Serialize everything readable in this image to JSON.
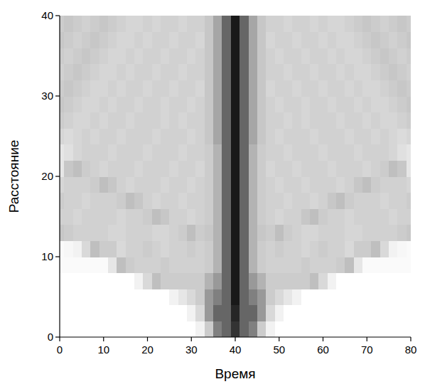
{
  "chart_data": {
    "type": "heatmap",
    "x_label": "Время",
    "y_label": "Расстояние",
    "xlim": [
      0,
      80
    ],
    "ylim": [
      0,
      40
    ],
    "xticks": [
      0,
      10,
      20,
      30,
      40,
      50,
      60,
      70,
      80
    ],
    "yticks": [
      0,
      10,
      20,
      30,
      40
    ],
    "x": [
      0,
      2,
      4,
      6,
      8,
      10,
      12,
      14,
      16,
      18,
      20,
      22,
      24,
      26,
      28,
      30,
      32,
      34,
      36,
      38,
      40,
      42,
      44,
      46,
      48,
      50,
      52,
      54,
      56,
      58,
      60,
      62,
      64,
      66,
      68,
      70,
      72,
      74,
      76,
      78,
      80
    ],
    "y": [
      1,
      3,
      5,
      7,
      9,
      11,
      13,
      15,
      17,
      19,
      21,
      23,
      25,
      27,
      29,
      31,
      33,
      35,
      37,
      39
    ],
    "values": [
      [
        0,
        0,
        0,
        0,
        0,
        0,
        0,
        0,
        0,
        0,
        0,
        0,
        0,
        0,
        0,
        0,
        0.05,
        0.2,
        0.5,
        0.6,
        0.8,
        0.6,
        0.5,
        0.2,
        0.05,
        0,
        0,
        0,
        0,
        0,
        0,
        0,
        0,
        0,
        0,
        0,
        0,
        0,
        0,
        0,
        0
      ],
      [
        0,
        0,
        0,
        0,
        0,
        0,
        0,
        0,
        0,
        0,
        0,
        0,
        0,
        0,
        0,
        0.05,
        0.15,
        0.4,
        0.6,
        0.6,
        0.85,
        0.6,
        0.6,
        0.4,
        0.15,
        0.05,
        0,
        0,
        0,
        0,
        0,
        0,
        0,
        0,
        0,
        0,
        0,
        0,
        0,
        0,
        0
      ],
      [
        0,
        0,
        0,
        0,
        0,
        0,
        0,
        0,
        0,
        0,
        0,
        0,
        0,
        0.05,
        0.1,
        0.15,
        0.2,
        0.4,
        0.5,
        0.6,
        0.9,
        0.6,
        0.5,
        0.4,
        0.2,
        0.15,
        0.1,
        0.05,
        0,
        0,
        0,
        0,
        0,
        0,
        0,
        0,
        0,
        0,
        0,
        0,
        0
      ],
      [
        0,
        0,
        0,
        0,
        0,
        0,
        0,
        0,
        0,
        0.05,
        0.15,
        0.25,
        0.2,
        0.2,
        0.2,
        0.2,
        0.2,
        0.3,
        0.4,
        0.6,
        0.9,
        0.6,
        0.4,
        0.3,
        0.2,
        0.2,
        0.2,
        0.2,
        0.2,
        0.25,
        0.15,
        0.05,
        0,
        0,
        0,
        0,
        0,
        0,
        0,
        0,
        0
      ],
      [
        0.02,
        0.02,
        0.02,
        0.02,
        0.02,
        0.02,
        0.1,
        0.25,
        0.2,
        0.18,
        0.18,
        0.18,
        0.2,
        0.18,
        0.18,
        0.18,
        0.18,
        0.2,
        0.3,
        0.6,
        0.9,
        0.6,
        0.3,
        0.2,
        0.18,
        0.18,
        0.18,
        0.18,
        0.2,
        0.18,
        0.18,
        0.18,
        0.2,
        0.25,
        0.1,
        0.02,
        0.02,
        0.02,
        0.02,
        0.02,
        0.02
      ],
      [
        0.02,
        0.03,
        0.05,
        0.15,
        0.25,
        0.2,
        0.2,
        0.15,
        0.18,
        0.18,
        0.2,
        0.18,
        0.16,
        0.18,
        0.18,
        0.2,
        0.18,
        0.2,
        0.3,
        0.6,
        0.9,
        0.6,
        0.3,
        0.2,
        0.18,
        0.2,
        0.18,
        0.18,
        0.16,
        0.18,
        0.2,
        0.18,
        0.18,
        0.15,
        0.2,
        0.2,
        0.25,
        0.15,
        0.05,
        0.03,
        0.02
      ],
      [
        0.22,
        0.2,
        0.18,
        0.18,
        0.18,
        0.18,
        0.16,
        0.16,
        0.18,
        0.18,
        0.18,
        0.16,
        0.16,
        0.18,
        0.2,
        0.25,
        0.2,
        0.22,
        0.3,
        0.6,
        0.9,
        0.6,
        0.3,
        0.22,
        0.2,
        0.25,
        0.2,
        0.18,
        0.16,
        0.16,
        0.18,
        0.18,
        0.18,
        0.16,
        0.16,
        0.18,
        0.18,
        0.18,
        0.18,
        0.2,
        0.22
      ],
      [
        0.18,
        0.18,
        0.16,
        0.18,
        0.18,
        0.18,
        0.18,
        0.16,
        0.18,
        0.18,
        0.2,
        0.25,
        0.22,
        0.18,
        0.18,
        0.16,
        0.18,
        0.2,
        0.3,
        0.6,
        0.9,
        0.6,
        0.3,
        0.2,
        0.18,
        0.16,
        0.18,
        0.18,
        0.22,
        0.25,
        0.2,
        0.18,
        0.18,
        0.16,
        0.18,
        0.18,
        0.18,
        0.18,
        0.16,
        0.18,
        0.18
      ],
      [
        0.2,
        0.18,
        0.18,
        0.16,
        0.18,
        0.18,
        0.18,
        0.2,
        0.25,
        0.22,
        0.18,
        0.16,
        0.18,
        0.18,
        0.16,
        0.18,
        0.18,
        0.2,
        0.3,
        0.6,
        0.9,
        0.6,
        0.3,
        0.2,
        0.18,
        0.18,
        0.16,
        0.18,
        0.18,
        0.16,
        0.18,
        0.22,
        0.25,
        0.2,
        0.18,
        0.18,
        0.18,
        0.16,
        0.18,
        0.18,
        0.2
      ],
      [
        0.16,
        0.18,
        0.18,
        0.18,
        0.2,
        0.25,
        0.22,
        0.18,
        0.16,
        0.18,
        0.18,
        0.18,
        0.16,
        0.18,
        0.18,
        0.16,
        0.18,
        0.2,
        0.3,
        0.6,
        0.9,
        0.6,
        0.3,
        0.2,
        0.18,
        0.16,
        0.18,
        0.18,
        0.16,
        0.18,
        0.18,
        0.18,
        0.16,
        0.18,
        0.22,
        0.25,
        0.2,
        0.18,
        0.18,
        0.18,
        0.16
      ],
      [
        0.1,
        0.22,
        0.25,
        0.2,
        0.18,
        0.16,
        0.18,
        0.18,
        0.18,
        0.16,
        0.18,
        0.18,
        0.18,
        0.16,
        0.18,
        0.18,
        0.16,
        0.2,
        0.3,
        0.6,
        0.9,
        0.6,
        0.3,
        0.2,
        0.16,
        0.18,
        0.18,
        0.16,
        0.18,
        0.18,
        0.18,
        0.16,
        0.18,
        0.18,
        0.18,
        0.16,
        0.18,
        0.2,
        0.25,
        0.22,
        0.1
      ],
      [
        0.1,
        0.12,
        0.16,
        0.18,
        0.18,
        0.18,
        0.16,
        0.18,
        0.18,
        0.18,
        0.16,
        0.18,
        0.18,
        0.18,
        0.16,
        0.18,
        0.18,
        0.2,
        0.3,
        0.6,
        0.9,
        0.6,
        0.3,
        0.2,
        0.18,
        0.18,
        0.16,
        0.18,
        0.18,
        0.18,
        0.16,
        0.18,
        0.18,
        0.18,
        0.16,
        0.18,
        0.18,
        0.18,
        0.16,
        0.12,
        0.1
      ],
      [
        0.16,
        0.14,
        0.16,
        0.18,
        0.16,
        0.18,
        0.18,
        0.16,
        0.18,
        0.18,
        0.18,
        0.16,
        0.18,
        0.18,
        0.18,
        0.16,
        0.18,
        0.22,
        0.35,
        0.6,
        0.9,
        0.6,
        0.35,
        0.22,
        0.18,
        0.16,
        0.18,
        0.18,
        0.18,
        0.16,
        0.18,
        0.18,
        0.18,
        0.16,
        0.18,
        0.18,
        0.16,
        0.18,
        0.16,
        0.14,
        0.16
      ],
      [
        0.2,
        0.18,
        0.16,
        0.16,
        0.18,
        0.16,
        0.18,
        0.18,
        0.16,
        0.18,
        0.18,
        0.18,
        0.16,
        0.18,
        0.16,
        0.18,
        0.18,
        0.22,
        0.35,
        0.6,
        0.9,
        0.6,
        0.35,
        0.22,
        0.18,
        0.18,
        0.16,
        0.18,
        0.16,
        0.18,
        0.18,
        0.18,
        0.16,
        0.18,
        0.18,
        0.16,
        0.18,
        0.16,
        0.16,
        0.18,
        0.2
      ],
      [
        0.22,
        0.2,
        0.18,
        0.16,
        0.16,
        0.18,
        0.16,
        0.18,
        0.18,
        0.16,
        0.18,
        0.18,
        0.16,
        0.18,
        0.18,
        0.16,
        0.18,
        0.22,
        0.35,
        0.6,
        0.9,
        0.6,
        0.35,
        0.22,
        0.18,
        0.16,
        0.18,
        0.18,
        0.16,
        0.18,
        0.18,
        0.16,
        0.18,
        0.18,
        0.16,
        0.18,
        0.16,
        0.16,
        0.18,
        0.2,
        0.22
      ],
      [
        0.2,
        0.22,
        0.2,
        0.18,
        0.16,
        0.16,
        0.18,
        0.16,
        0.18,
        0.18,
        0.16,
        0.18,
        0.18,
        0.16,
        0.18,
        0.18,
        0.16,
        0.22,
        0.35,
        0.6,
        0.9,
        0.6,
        0.35,
        0.22,
        0.16,
        0.18,
        0.18,
        0.16,
        0.18,
        0.18,
        0.16,
        0.18,
        0.18,
        0.16,
        0.18,
        0.16,
        0.16,
        0.18,
        0.2,
        0.22,
        0.2
      ],
      [
        0.18,
        0.2,
        0.22,
        0.2,
        0.18,
        0.16,
        0.16,
        0.18,
        0.16,
        0.18,
        0.18,
        0.16,
        0.18,
        0.18,
        0.16,
        0.18,
        0.18,
        0.22,
        0.35,
        0.6,
        0.9,
        0.6,
        0.35,
        0.22,
        0.18,
        0.18,
        0.16,
        0.18,
        0.18,
        0.16,
        0.18,
        0.18,
        0.16,
        0.18,
        0.16,
        0.16,
        0.18,
        0.2,
        0.22,
        0.2,
        0.18
      ],
      [
        0.2,
        0.18,
        0.2,
        0.22,
        0.2,
        0.18,
        0.16,
        0.16,
        0.18,
        0.16,
        0.18,
        0.18,
        0.16,
        0.18,
        0.18,
        0.16,
        0.18,
        0.22,
        0.35,
        0.6,
        0.9,
        0.6,
        0.35,
        0.22,
        0.18,
        0.16,
        0.18,
        0.18,
        0.16,
        0.18,
        0.18,
        0.16,
        0.18,
        0.16,
        0.16,
        0.18,
        0.2,
        0.22,
        0.2,
        0.18,
        0.2
      ],
      [
        0.22,
        0.2,
        0.18,
        0.2,
        0.22,
        0.2,
        0.18,
        0.16,
        0.16,
        0.18,
        0.16,
        0.18,
        0.18,
        0.16,
        0.18,
        0.18,
        0.16,
        0.22,
        0.35,
        0.6,
        0.9,
        0.6,
        0.35,
        0.22,
        0.16,
        0.18,
        0.18,
        0.16,
        0.18,
        0.18,
        0.16,
        0.18,
        0.16,
        0.16,
        0.18,
        0.2,
        0.22,
        0.2,
        0.18,
        0.2,
        0.22
      ],
      [
        0.2,
        0.22,
        0.2,
        0.18,
        0.2,
        0.22,
        0.2,
        0.18,
        0.16,
        0.16,
        0.18,
        0.16,
        0.18,
        0.18,
        0.16,
        0.18,
        0.18,
        0.22,
        0.35,
        0.6,
        0.9,
        0.6,
        0.35,
        0.22,
        0.18,
        0.18,
        0.16,
        0.18,
        0.18,
        0.16,
        0.18,
        0.16,
        0.16,
        0.18,
        0.2,
        0.22,
        0.2,
        0.18,
        0.2,
        0.22,
        0.2
      ]
    ]
  }
}
